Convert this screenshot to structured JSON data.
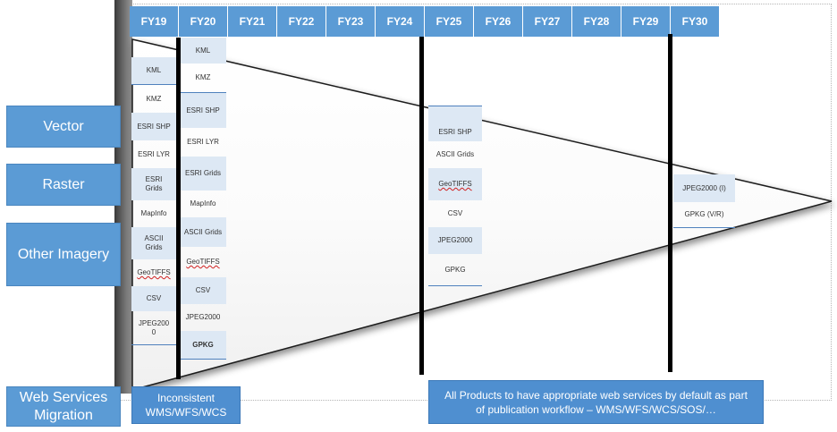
{
  "fiscal_years": [
    "FY19",
    "FY20",
    "FY21",
    "FY22",
    "FY23",
    "FY24",
    "FY25",
    "FY26",
    "FY27",
    "FY28",
    "FY29",
    "FY30"
  ],
  "categories": {
    "vector": "Vector",
    "raster": "Raster",
    "other_imagery": "Other Imagery",
    "web_services": "Web Services Migration"
  },
  "fy19_formats": [
    "KML",
    "KMZ",
    "ESRI SHP",
    "ESRI LYR",
    "ESRI Grids",
    "MapInfo",
    "ASCII Grids",
    "GeoTIFFS",
    "CSV",
    "JPEG2000"
  ],
  "fy20_formats": [
    "KML",
    "KMZ",
    "ESRI SHP",
    "ESRI LYR",
    "ESRI Grids",
    "MapInfo",
    "ASCII Grids",
    "GeoTIFFS",
    "CSV",
    "JPEG2000",
    "GPKG"
  ],
  "fy25_formats": [
    "ESRI SHP",
    "ASCII Grids",
    "GeoTIFFS",
    "CSV",
    "JPEG2000",
    "GPKG"
  ],
  "fy30_formats": [
    "JPEG2000 (I)",
    "GPKG (V/R)"
  ],
  "web_services": {
    "left_note": "Inconsistent WMS/WFS/WCS",
    "right_note": "All Products to have appropriate web services by default as part of publication workflow – WMS/WFS/WCS/SOS/…"
  }
}
